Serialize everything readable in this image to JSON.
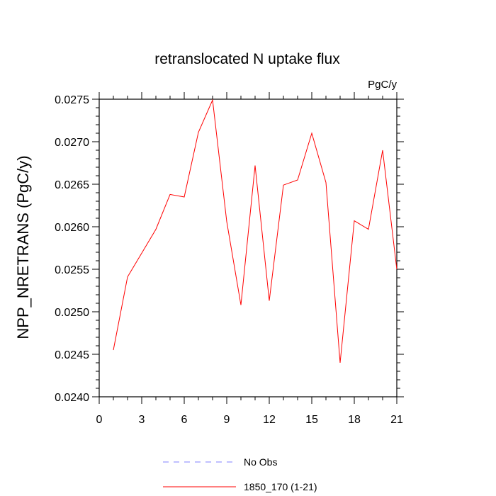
{
  "chart_data": {
    "type": "line",
    "title": "retranslocated N uptake flux",
    "units_label": "PgC/y",
    "xlabel": "",
    "ylabel": "NPP_NRETRANS  (PgC/y)",
    "xlim": [
      0,
      21
    ],
    "ylim": [
      0.024,
      0.0275
    ],
    "x_ticks": [
      0,
      3,
      6,
      9,
      12,
      15,
      18,
      21
    ],
    "x_tick_labels": [
      "0",
      "3",
      "6",
      "9",
      "12",
      "15",
      "18",
      "21"
    ],
    "y_ticks": [
      0.024,
      0.0245,
      0.025,
      0.0255,
      0.026,
      0.0265,
      0.027,
      0.0275
    ],
    "y_tick_labels": [
      "0.0240",
      "0.0245",
      "0.0250",
      "0.0255",
      "0.0260",
      "0.0265",
      "0.0270",
      "0.0275"
    ],
    "grid": false,
    "legend_position": "bottom",
    "series": [
      {
        "name": "No Obs",
        "color": "#8080ff",
        "dash": "dashed",
        "x": [],
        "values": []
      },
      {
        "name": "1850_170 (1-21)",
        "color": "#ff0000",
        "dash": "solid",
        "x": [
          1,
          2,
          3,
          4,
          5,
          6,
          7,
          8,
          9,
          10,
          11,
          12,
          13,
          14,
          15,
          16,
          17,
          18,
          19,
          20,
          21
        ],
        "values": [
          0.02455,
          0.02541,
          0.02569,
          0.02597,
          0.02638,
          0.02635,
          0.02711,
          0.02749,
          0.02606,
          0.02508,
          0.02672,
          0.02513,
          0.02649,
          0.02655,
          0.0271,
          0.02652,
          0.0244,
          0.02607,
          0.02597,
          0.0269,
          0.0255
        ]
      }
    ]
  }
}
